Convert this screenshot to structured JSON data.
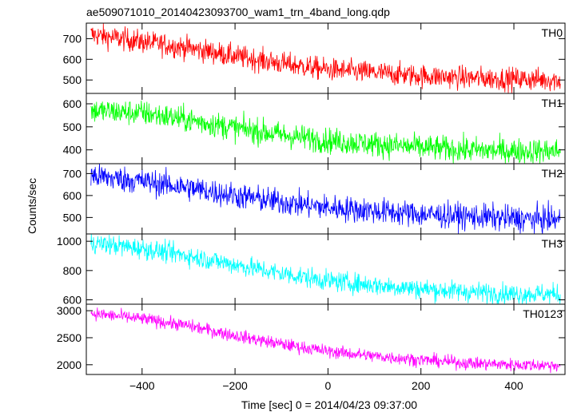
{
  "chart_data": {
    "type": "line",
    "title": "ae509071010_20140423093700_wam1_trn_4band_long.qdp",
    "xlabel": "Time [sec] 0 = 2014/04/23 09:37:00",
    "ylabel": "Counts/sec",
    "xlim": [
      -520,
      510
    ],
    "x_ticks": [
      -400,
      -200,
      0,
      200,
      400
    ],
    "x_tick_labels": [
      "−400",
      "−200",
      "0",
      "200",
      "400"
    ],
    "grid": false,
    "panels": [
      {
        "name": "TH0",
        "color": "#ff0000",
        "ylim": [
          435,
          775
        ],
        "y_ticks": [
          500,
          600,
          700
        ],
        "trend": {
          "x": [
            -510,
            -400,
            -300,
            -200,
            -100,
            0,
            100,
            200,
            300,
            400,
            500
          ],
          "y": [
            720,
            685,
            655,
            615,
            580,
            550,
            535,
            520,
            510,
            505,
            500
          ]
        },
        "noise": 28
      },
      {
        "name": "TH1",
        "color": "#00ff00",
        "ylim": [
          340,
          645
        ],
        "y_ticks": [
          400,
          500,
          600
        ],
        "trend": {
          "x": [
            -510,
            -400,
            -300,
            -200,
            -100,
            0,
            100,
            200,
            300,
            400,
            500
          ],
          "y": [
            570,
            560,
            530,
            495,
            465,
            440,
            425,
            410,
            400,
            395,
            395
          ]
        },
        "noise": 28
      },
      {
        "name": "TH2",
        "color": "#0000ff",
        "ylim": [
          425,
          745
        ],
        "y_ticks": [
          500,
          600,
          700
        ],
        "trend": {
          "x": [
            -510,
            -400,
            -300,
            -200,
            -100,
            0,
            100,
            200,
            300,
            400,
            500
          ],
          "y": [
            690,
            665,
            635,
            600,
            570,
            545,
            530,
            515,
            505,
            495,
            490
          ]
        },
        "noise": 30
      },
      {
        "name": "TH3",
        "color": "#00ffff",
        "ylim": [
          570,
          1050
        ],
        "y_ticks": [
          600,
          800,
          1000
        ],
        "trend": {
          "x": [
            -510,
            -400,
            -300,
            -200,
            -100,
            0,
            100,
            200,
            300,
            400,
            500
          ],
          "y": [
            990,
            950,
            900,
            840,
            780,
            730,
            700,
            675,
            655,
            640,
            640
          ]
        },
        "noise": 35
      },
      {
        "name": "TH0123",
        "color": "#ff00ff",
        "ylim": [
          1820,
          3120
        ],
        "y_ticks": [
          2000,
          2500,
          3000
        ],
        "y_tick_labels": [
          "2000",
          "2500",
          "3000"
        ],
        "trend": {
          "x": [
            -510,
            -400,
            -300,
            -200,
            -100,
            0,
            100,
            200,
            300,
            400,
            500
          ],
          "y": [
            2950,
            2850,
            2720,
            2540,
            2380,
            2250,
            2160,
            2090,
            2030,
            2000,
            1990
          ]
        },
        "noise": 60
      }
    ]
  }
}
